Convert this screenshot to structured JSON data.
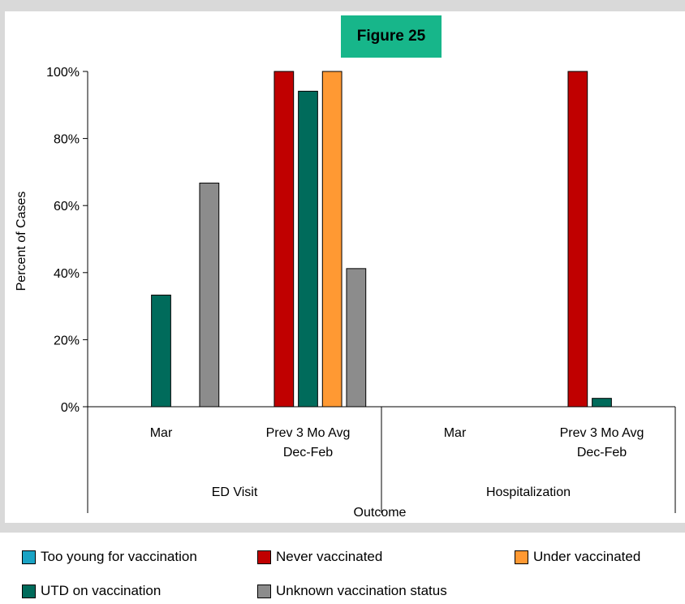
{
  "chart_data": {
    "type": "bar",
    "title": "Figure 25",
    "xlabel": "Outcome",
    "ylabel": "Percent of Cases",
    "ylim": [
      0,
      100
    ],
    "yticks": [
      "0%",
      "20%",
      "40%",
      "60%",
      "80%",
      "100%"
    ],
    "groups": [
      {
        "label": "ED Visit",
        "categories": [
          {
            "label": [
              "Mar"
            ]
          },
          {
            "label": [
              "Prev 3 Mo Avg",
              "Dec-Feb"
            ]
          }
        ]
      },
      {
        "label": "Hospitalization",
        "categories": [
          {
            "label": [
              "Mar"
            ]
          },
          {
            "label": [
              "Prev 3 Mo Avg",
              "Dec-Feb"
            ]
          }
        ]
      }
    ],
    "series": [
      {
        "name": "Too young for vaccination",
        "color": "#1aa3c4",
        "values": [
          0,
          0,
          0,
          0
        ]
      },
      {
        "name": "Never vaccinated",
        "color": "#c00000",
        "values": [
          0,
          100,
          0,
          100
        ]
      },
      {
        "name": "UTD on vaccination",
        "color": "#006b5b",
        "values": [
          33.3,
          94.1,
          0,
          2.5
        ]
      },
      {
        "name": "Under vaccinated",
        "color": "#ff9933",
        "values": [
          0,
          100,
          0,
          0
        ]
      },
      {
        "name": "Unknown vaccination status",
        "color": "#8c8c8c",
        "values": [
          66.7,
          41.2,
          0,
          0
        ]
      }
    ],
    "grid": false,
    "legend_position": "bottom"
  },
  "legend": {
    "items": [
      {
        "label": "Too young for vaccination",
        "color": "#1aa3c4"
      },
      {
        "label": "Never vaccinated",
        "color": "#c00000"
      },
      {
        "label": "Under vaccinated",
        "color": "#ff9933"
      },
      {
        "label": "UTD on vaccination",
        "color": "#006b5b"
      },
      {
        "label": "Unknown vaccination status",
        "color": "#8c8c8c"
      }
    ]
  }
}
